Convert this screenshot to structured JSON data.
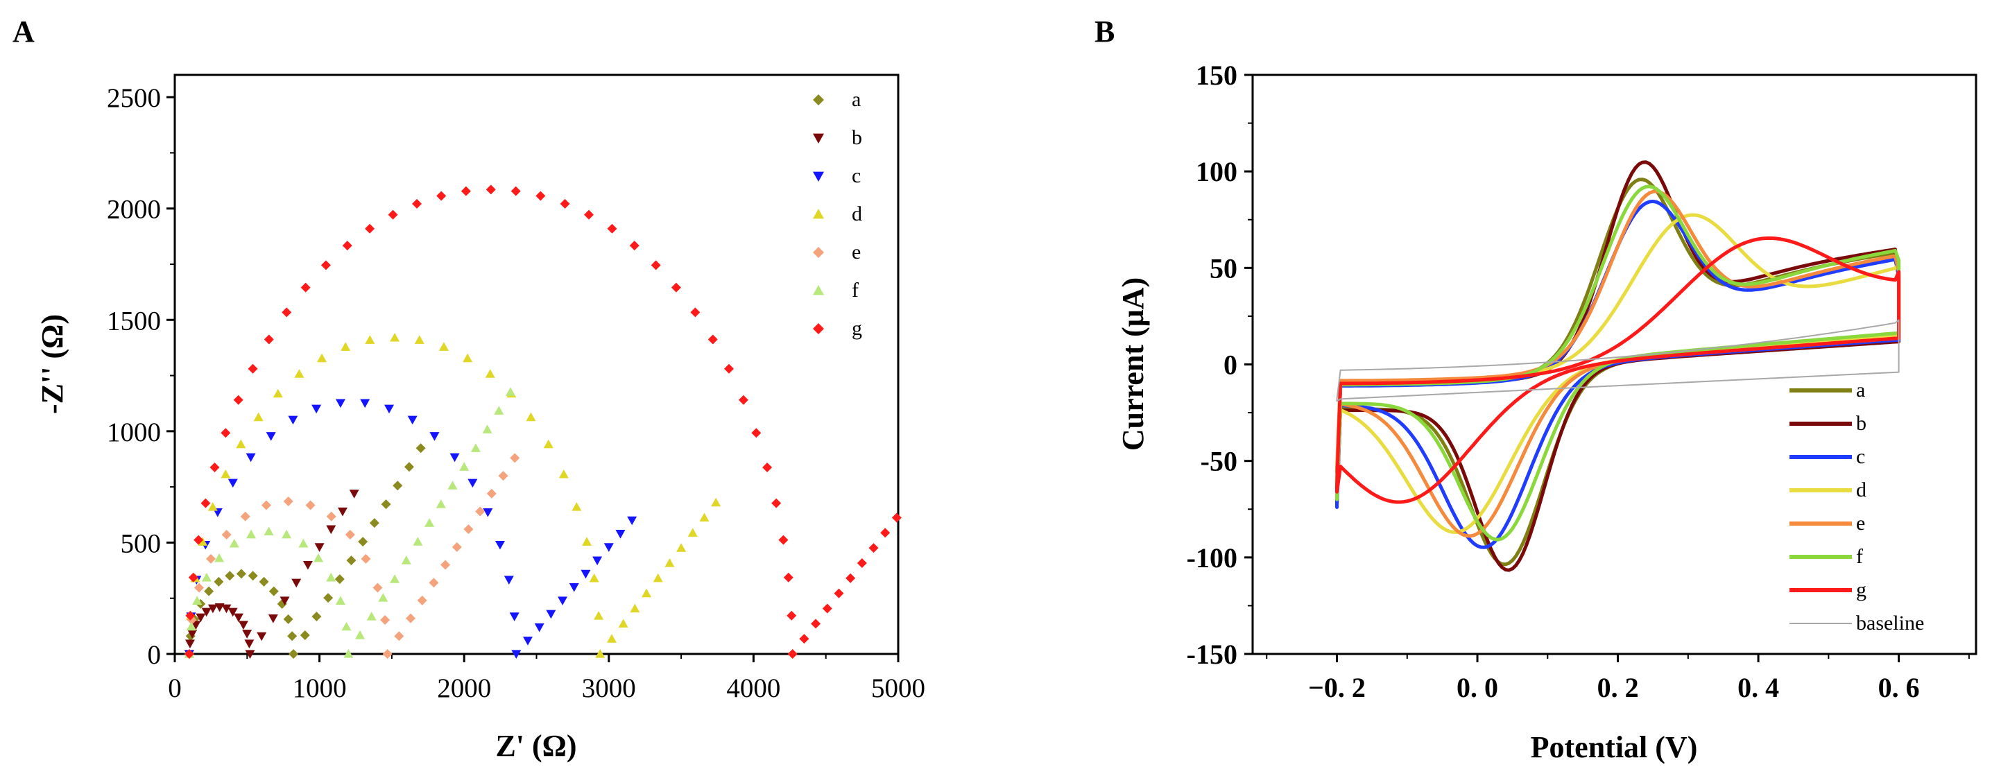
{
  "chart_data": [
    {
      "panel": "A",
      "type": "scatter",
      "title": "",
      "xlabel": "Z' (Ω)",
      "ylabel": "-Z'' (Ω)",
      "xlim": [
        0,
        5000
      ],
      "ylim": [
        0,
        2600
      ],
      "xticks": [
        0,
        1000,
        2000,
        3000,
        4000,
        5000
      ],
      "yticks": [
        0,
        500,
        1000,
        1500,
        2000,
        2500
      ],
      "legend_position": "top-right",
      "series": [
        {
          "name": "a",
          "color": "#8a8a1e",
          "marker": "diamond",
          "R0": 100,
          "Rct": 720,
          "w_slope": 1.05,
          "w_max": 1750
        },
        {
          "name": "b",
          "color": "#7a0a0a",
          "marker": "triangle-down",
          "R0": 100,
          "Rct": 420,
          "w_slope": 1.0,
          "w_max": 1300
        },
        {
          "name": "c",
          "color": "#1414ff",
          "marker": "triangle-down",
          "R0": 100,
          "Rct": 2260,
          "w_slope": 0.75,
          "w_max": 3220
        },
        {
          "name": "d",
          "color": "#e0d626",
          "marker": "triangle-up",
          "R0": 100,
          "Rct": 2840,
          "w_slope": 0.85,
          "w_max": 3800
        },
        {
          "name": "e",
          "color": "#f5a37c",
          "marker": "diamond",
          "R0": 100,
          "Rct": 1370,
          "w_slope": 1.0,
          "w_max": 2350
        },
        {
          "name": "f",
          "color": "#b8e87c",
          "marker": "triangle-up",
          "R0": 100,
          "Rct": 1100,
          "w_slope": 1.05,
          "w_max": 2380
        },
        {
          "name": "g",
          "color": "#ff1a1a",
          "marker": "diamond",
          "R0": 100,
          "Rct": 4170,
          "w_slope": 0.85,
          "w_max": 5000
        }
      ]
    },
    {
      "panel": "B",
      "type": "line",
      "title": "",
      "xlabel": "Potential (V)",
      "ylabel": "Current (μA)",
      "xlim": [
        -0.32,
        0.71
      ],
      "ylim": [
        -150,
        150
      ],
      "xticks": [
        -0.2,
        0.0,
        0.2,
        0.4,
        0.6
      ],
      "xtick_labels": [
        "−0. 2",
        "0. 0",
        "0. 2",
        "0. 4",
        "0. 6"
      ],
      "yticks": [
        -150,
        -100,
        -50,
        0,
        50,
        100,
        150
      ],
      "legend_position": "bottom-right",
      "series": [
        {
          "name": "a",
          "color": "#7f7f14",
          "Epa": 0.23,
          "Ipa": 102,
          "Epc": 0.04,
          "Ipc": -105,
          "ends": [
            46,
            -68
          ],
          "wa": 0.065,
          "wc": 0.065
        },
        {
          "name": "b",
          "color": "#7a0a0a",
          "Epa": 0.235,
          "Ipa": 111,
          "Epc": 0.045,
          "Ipc": -108,
          "ends": [
            44,
            -70
          ],
          "wa": 0.06,
          "wc": 0.06
        },
        {
          "name": "c",
          "color": "#1f3cff",
          "Epa": 0.245,
          "Ipa": 90,
          "Epc": 0.01,
          "Ipc": -96,
          "ends": [
            46,
            -74
          ],
          "wa": 0.07,
          "wc": 0.075
        },
        {
          "name": "d",
          "color": "#e8dc40",
          "Epa": 0.3,
          "Ipa": 81,
          "Epc": -0.03,
          "Ipc": -88,
          "ends": [
            52,
            -62
          ],
          "wa": 0.09,
          "wc": 0.09
        },
        {
          "name": "e",
          "color": "#f5893c",
          "Epa": 0.25,
          "Ipa": 95,
          "Epc": -0.01,
          "Ipc": -90,
          "ends": [
            48,
            -56
          ],
          "wa": 0.07,
          "wc": 0.08
        },
        {
          "name": "f",
          "color": "#8ad83c",
          "Epa": 0.24,
          "Ipa": 98,
          "Epc": 0.03,
          "Ipc": -92,
          "ends": [
            54,
            -70
          ],
          "wa": 0.07,
          "wc": 0.07
        },
        {
          "name": "g",
          "color": "#ff1a1a",
          "Epa": 0.4,
          "Ipa": 65,
          "Epc": -0.11,
          "Ipc": -72,
          "ends": [
            48,
            -66
          ],
          "wa": 0.13,
          "wc": 0.12
        },
        {
          "name": "baseline",
          "color": "#a8a8a8",
          "Epa": 0.2,
          "Ipa": 0,
          "Epc": 0.2,
          "Ipc": 0,
          "ends": [
            23,
            -19
          ],
          "wa": 0.1,
          "wc": 0.1
        }
      ]
    }
  ]
}
